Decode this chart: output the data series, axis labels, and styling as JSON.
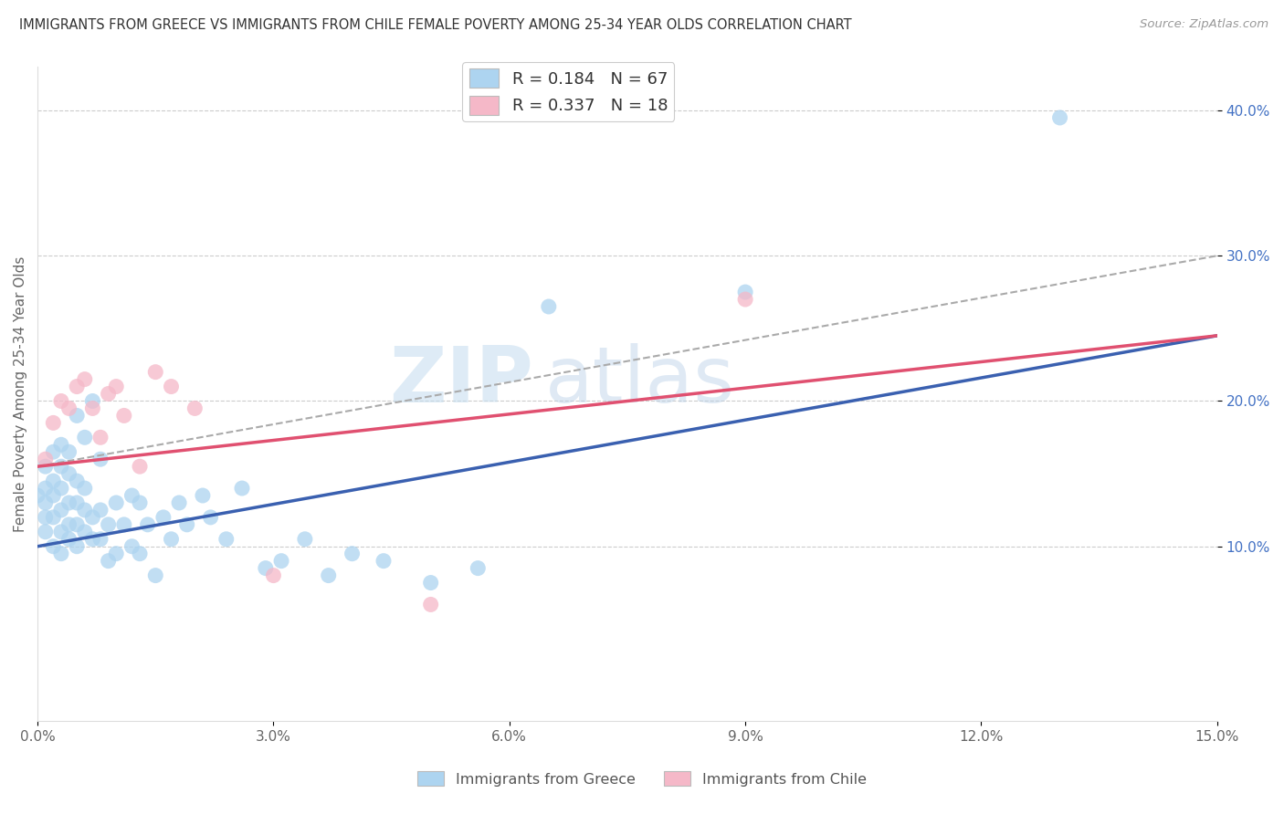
{
  "title": "IMMIGRANTS FROM GREECE VS IMMIGRANTS FROM CHILE FEMALE POVERTY AMONG 25-34 YEAR OLDS CORRELATION CHART",
  "source": "Source: ZipAtlas.com",
  "ylabel": "Female Poverty Among 25-34 Year Olds",
  "legend_label1": "Immigrants from Greece",
  "legend_label2": "Immigrants from Chile",
  "R1": 0.184,
  "N1": 67,
  "R2": 0.337,
  "N2": 18,
  "color1": "#ADD4F0",
  "color2": "#F5B8C8",
  "line_color1": "#3A60B0",
  "line_color2": "#E05070",
  "dash_color": "#AAAAAA",
  "xlim": [
    0.0,
    0.15
  ],
  "ylim": [
    -0.02,
    0.43
  ],
  "watermark_zip": "ZIP",
  "watermark_atlas": "atlas",
  "greece_x": [
    0.0,
    0.001,
    0.001,
    0.001,
    0.001,
    0.001,
    0.002,
    0.002,
    0.002,
    0.002,
    0.002,
    0.003,
    0.003,
    0.003,
    0.003,
    0.003,
    0.003,
    0.004,
    0.004,
    0.004,
    0.004,
    0.004,
    0.005,
    0.005,
    0.005,
    0.005,
    0.005,
    0.006,
    0.006,
    0.006,
    0.006,
    0.007,
    0.007,
    0.007,
    0.008,
    0.008,
    0.008,
    0.009,
    0.009,
    0.01,
    0.01,
    0.011,
    0.012,
    0.012,
    0.013,
    0.013,
    0.014,
    0.015,
    0.016,
    0.017,
    0.018,
    0.019,
    0.021,
    0.022,
    0.024,
    0.026,
    0.029,
    0.031,
    0.034,
    0.037,
    0.04,
    0.044,
    0.05,
    0.056,
    0.065,
    0.09,
    0.13
  ],
  "greece_y": [
    0.135,
    0.11,
    0.12,
    0.13,
    0.14,
    0.155,
    0.1,
    0.12,
    0.135,
    0.145,
    0.165,
    0.095,
    0.11,
    0.125,
    0.14,
    0.155,
    0.17,
    0.105,
    0.115,
    0.13,
    0.15,
    0.165,
    0.1,
    0.115,
    0.13,
    0.145,
    0.19,
    0.11,
    0.125,
    0.14,
    0.175,
    0.105,
    0.12,
    0.2,
    0.105,
    0.125,
    0.16,
    0.09,
    0.115,
    0.095,
    0.13,
    0.115,
    0.1,
    0.135,
    0.095,
    0.13,
    0.115,
    0.08,
    0.12,
    0.105,
    0.13,
    0.115,
    0.135,
    0.12,
    0.105,
    0.14,
    0.085,
    0.09,
    0.105,
    0.08,
    0.095,
    0.09,
    0.075,
    0.085,
    0.265,
    0.275,
    0.395
  ],
  "chile_x": [
    0.001,
    0.002,
    0.003,
    0.004,
    0.005,
    0.006,
    0.007,
    0.008,
    0.009,
    0.01,
    0.011,
    0.013,
    0.015,
    0.017,
    0.02,
    0.03,
    0.05,
    0.09
  ],
  "chile_y": [
    0.16,
    0.185,
    0.2,
    0.195,
    0.21,
    0.215,
    0.195,
    0.175,
    0.205,
    0.21,
    0.19,
    0.155,
    0.22,
    0.21,
    0.195,
    0.08,
    0.06,
    0.27
  ],
  "trendline_greece": [
    0.1,
    0.245
  ],
  "trendline_chile": [
    0.155,
    0.245
  ],
  "trendline_dash": [
    0.155,
    0.3
  ]
}
